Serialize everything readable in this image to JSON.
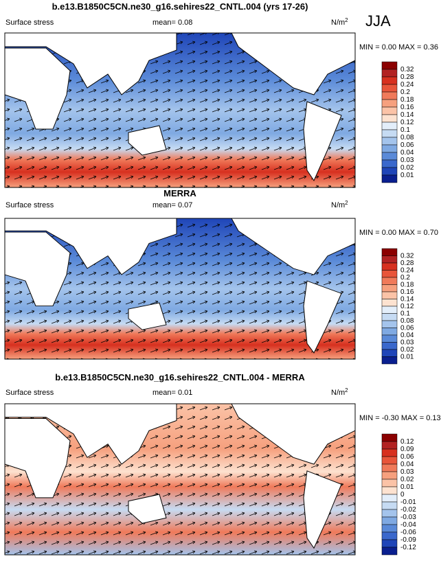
{
  "season": "JJA",
  "panels": [
    {
      "title": "b.e13.B1850C5CN.ne30_g16.sehires22_CNTL.004 (yrs 17-26)",
      "variable": "Surface stress",
      "mean": "mean=  0.08",
      "units": "N/m",
      "units_sup": "2",
      "min_max": "MIN =  0.00 MAX =  0.36",
      "colorbar": [
        "0.32",
        "0.28",
        "0.24",
        "0.2",
        "0.18",
        "0.16",
        "0.14",
        "0.12",
        "0.1",
        "0.08",
        "0.06",
        "0.04",
        "0.03",
        "0.02",
        "0.01"
      ]
    },
    {
      "title": "MERRA",
      "variable": "Surface stress",
      "mean": "mean=  0.07",
      "units": "N/m",
      "units_sup": "2",
      "min_max": "MIN =  0.00 MAX =  0.70",
      "colorbar": [
        "0.32",
        "0.28",
        "0.24",
        "0.2",
        "0.18",
        "0.16",
        "0.14",
        "0.12",
        "0.1",
        "0.08",
        "0.06",
        "0.04",
        "0.03",
        "0.02",
        "0.01"
      ]
    },
    {
      "title": "b.e13.B1850C5CN.ne30_g16.sehires22_CNTL.004 - MERRA",
      "variable": "Surface stress",
      "mean": "mean=  0.01",
      "units": "N/m",
      "units_sup": "2",
      "min_max": "MIN = -0.30 MAX =  0.13",
      "colorbar": [
        "0.12",
        "0.09",
        "0.06",
        "0.04",
        "0.03",
        "0.02",
        "0.01",
        "0",
        "-0.01",
        "-0.02",
        "-0.03",
        "-0.04",
        "-0.06",
        "-0.09",
        "-0.12"
      ]
    }
  ]
}
